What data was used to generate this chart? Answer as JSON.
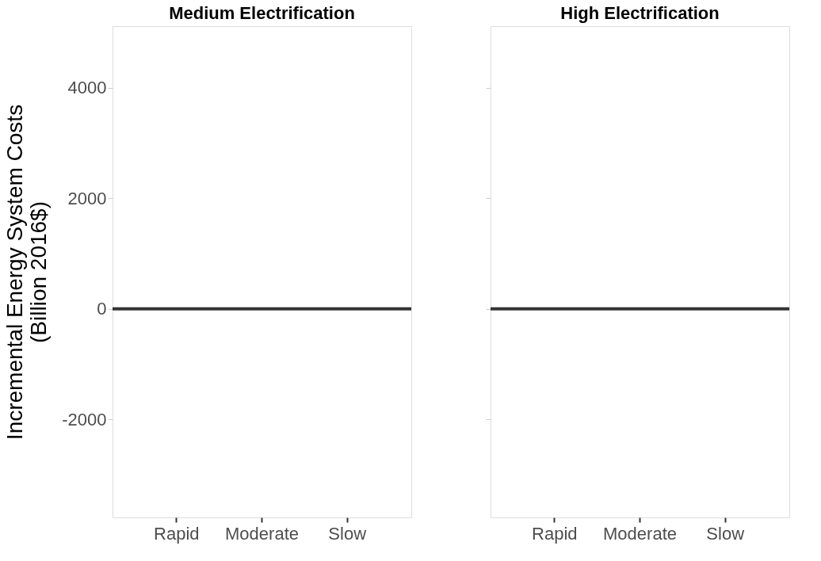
{
  "chart_data": [
    {
      "type": "bar",
      "title": "Medium Electrification",
      "ylabel": "Incremental Energy System Costs\n(Billion 2016$)",
      "categories": [
        "Rapid",
        "Moderate",
        "Slow"
      ],
      "values": [
        0,
        0,
        0
      ],
      "ylim": [
        -3770,
        5110
      ],
      "yticks": [
        -2000,
        0,
        2000,
        4000
      ],
      "grid": false,
      "ref_lines": [
        {
          "axis": "y",
          "value": 0,
          "color": "#333333"
        }
      ]
    },
    {
      "type": "bar",
      "title": "High Electrification",
      "categories": [
        "Rapid",
        "Moderate",
        "Slow"
      ],
      "values": [
        0,
        0,
        0
      ],
      "ylim": [
        -3770,
        5110
      ],
      "yticks": [
        -2000,
        0,
        2000,
        4000
      ],
      "grid": false,
      "tick_labels": "x",
      "ref_lines": [
        {
          "axis": "y",
          "value": 0,
          "color": "#333333"
        }
      ]
    }
  ]
}
